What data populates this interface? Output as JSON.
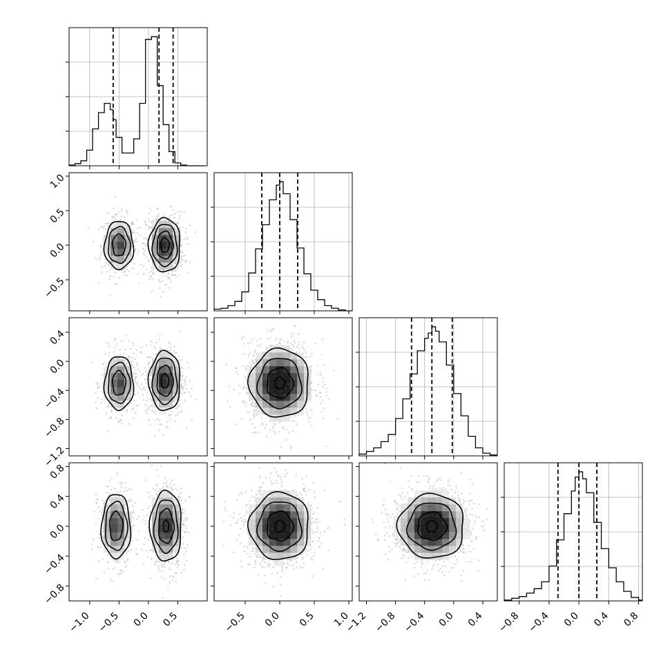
{
  "chart_data": {
    "type": "corner",
    "title": "",
    "dimensions": [
      {
        "id": "p0",
        "xlim": [
          -1.35,
          1.0
        ],
        "ticks": [
          -1.0,
          -0.5,
          0.0,
          0.5
        ],
        "tick_labels": [
          "−1.0",
          "−0.5",
          "0.0",
          "0.5"
        ],
        "quantiles": [
          -0.6,
          0.18,
          0.42
        ],
        "hist": {
          "edges": [
            -1.35,
            -1.25,
            -1.15,
            -1.05,
            -0.95,
            -0.85,
            -0.75,
            -0.65,
            -0.6,
            -0.55,
            -0.45,
            -0.35,
            -0.25,
            -0.15,
            -0.05,
            0.05,
            0.15,
            0.25,
            0.35,
            0.45,
            0.55,
            0.65,
            0.75,
            0.85,
            0.95
          ],
          "counts": [
            1,
            3,
            7,
            22,
            52,
            75,
            88,
            79,
            65,
            40,
            18,
            18,
            38,
            88,
            178,
            182,
            113,
            58,
            20,
            4,
            1,
            0,
            0,
            0
          ]
        }
      },
      {
        "id": "p1",
        "xlim": [
          -0.95,
          1.05
        ],
        "ticks": [
          -0.5,
          0.0,
          0.5,
          1.0
        ],
        "tick_labels": [
          "−0.5",
          "0.0",
          "0.5",
          "1.0"
        ],
        "quantiles": [
          -0.26,
          0.0,
          0.26
        ],
        "hist": {
          "edges": [
            -0.95,
            -0.85,
            -0.75,
            -0.65,
            -0.55,
            -0.45,
            -0.35,
            -0.25,
            -0.15,
            -0.05,
            0.0,
            0.05,
            0.15,
            0.25,
            0.35,
            0.45,
            0.55,
            0.65,
            0.75,
            0.85,
            0.95,
            1.05
          ],
          "counts": [
            2,
            3,
            6,
            11,
            22,
            44,
            72,
            100,
            129,
            146,
            150,
            136,
            106,
            73,
            43,
            24,
            13,
            6,
            3,
            1,
            0
          ]
        }
      },
      {
        "id": "p2",
        "xlim": [
          -1.3,
          0.6
        ],
        "ticks": [
          -1.2,
          -0.8,
          -0.4,
          0.0,
          0.4
        ],
        "tick_labels": [
          "−1.2",
          "−0.8",
          "−0.4",
          "0.0",
          "0.4"
        ],
        "quantiles": [
          -0.58,
          -0.3,
          -0.02
        ],
        "hist": {
          "edges": [
            -1.3,
            -1.2,
            -1.1,
            -1.0,
            -0.9,
            -0.8,
            -0.7,
            -0.6,
            -0.5,
            -0.4,
            -0.35,
            -0.3,
            -0.25,
            -0.2,
            -0.1,
            0.0,
            0.1,
            0.2,
            0.3,
            0.4,
            0.5,
            0.6
          ],
          "counts": [
            2,
            5,
            9,
            16,
            24,
            42,
            64,
            92,
            118,
            132,
            138,
            145,
            140,
            128,
            102,
            70,
            45,
            22,
            9,
            3,
            1
          ]
        }
      },
      {
        "id": "p3",
        "xlim": [
          -1.0,
          0.85
        ],
        "ticks": [
          -0.8,
          -0.4,
          0.0,
          0.4,
          0.8
        ],
        "tick_labels": [
          "−0.8",
          "−0.4",
          "0.0",
          "0.4",
          "0.8"
        ],
        "quantiles": [
          -0.28,
          0.0,
          0.24
        ],
        "hist": {
          "edges": [
            -1.0,
            -0.9,
            -0.8,
            -0.7,
            -0.6,
            -0.5,
            -0.4,
            -0.3,
            -0.2,
            -0.1,
            -0.05,
            0.0,
            0.05,
            0.1,
            0.2,
            0.3,
            0.4,
            0.5,
            0.6,
            0.7,
            0.8,
            0.85
          ],
          "counts": [
            1,
            3,
            5,
            9,
            14,
            22,
            40,
            70,
            100,
            126,
            142,
            148,
            140,
            124,
            90,
            60,
            38,
            22,
            11,
            4,
            1
          ]
        }
      }
    ],
    "pairs": [
      {
        "x": "p0",
        "y": "p1",
        "clusters": [
          {
            "cx": -0.5,
            "cy": 0.0,
            "sx": 0.12,
            "sy": 0.17,
            "weight": 0.42,
            "levels": [
              0.93,
              1.55,
              2.05
            ]
          },
          {
            "cx": 0.28,
            "cy": 0.0,
            "sx": 0.13,
            "sy": 0.19,
            "weight": 0.58,
            "levels": [
              0.55,
              1.05,
              1.6,
              2.05
            ]
          }
        ]
      },
      {
        "x": "p0",
        "y": "p2",
        "clusters": [
          {
            "cx": -0.5,
            "cy": -0.3,
            "sx": 0.12,
            "sy": 0.18,
            "weight": 0.42,
            "levels": [
              0.93,
              1.55,
              2.05
            ]
          },
          {
            "cx": 0.28,
            "cy": -0.27,
            "sx": 0.13,
            "sy": 0.2,
            "weight": 0.58,
            "levels": [
              0.5,
              1.05,
              1.6,
              2.05
            ]
          }
        ]
      },
      {
        "x": "p1",
        "y": "p2",
        "clusters": [
          {
            "cx": 0.0,
            "cy": -0.3,
            "sx": 0.21,
            "sy": 0.23,
            "weight": 1.0,
            "levels": [
              0.35,
              0.9,
              1.5,
              2.05
            ]
          }
        ]
      },
      {
        "x": "p0",
        "y": "p3",
        "clusters": [
          {
            "cx": -0.55,
            "cy": 0.0,
            "sx": 0.12,
            "sy": 0.21,
            "weight": 0.42,
            "levels": [
              0.93,
              1.55,
              2.05
            ]
          },
          {
            "cx": 0.3,
            "cy": 0.0,
            "sx": 0.13,
            "sy": 0.23,
            "weight": 0.58,
            "levels": [
              0.35,
              1.0,
              1.55,
              2.05
            ]
          }
        ]
      },
      {
        "x": "p1",
        "y": "p3",
        "clusters": [
          {
            "cx": 0.0,
            "cy": 0.0,
            "sx": 0.21,
            "sy": 0.22,
            "weight": 1.0,
            "levels": [
              0.35,
              0.9,
              1.5,
              2.05
            ]
          }
        ]
      },
      {
        "x": "p2",
        "y": "p3",
        "clusters": [
          {
            "cx": -0.3,
            "cy": 0.0,
            "sx": 0.22,
            "sy": 0.21,
            "weight": 1.0,
            "levels": [
              0.35,
              0.9,
              1.5,
              2.05
            ]
          }
        ]
      }
    ],
    "axis_labels": [],
    "grid": true,
    "legend": "none",
    "colors": {
      "line": "#000000",
      "grid": "#b0b0b0",
      "density_dark": "#000000",
      "scatter": "#bbbbbb"
    }
  }
}
